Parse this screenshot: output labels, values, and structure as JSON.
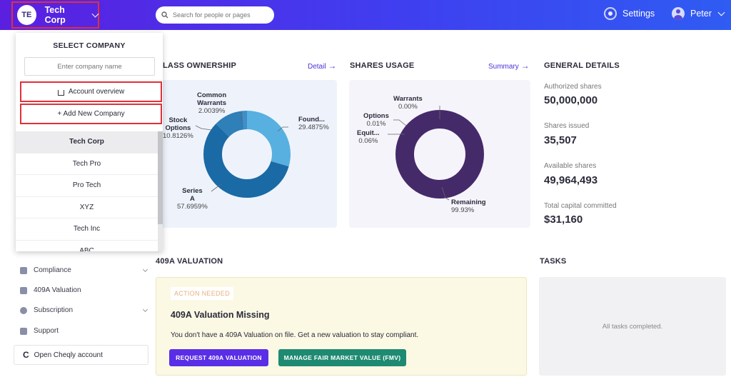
{
  "topbar": {
    "company_initials": "TE",
    "company_name": "Tech Corp",
    "search_placeholder": "Search for people or pages",
    "settings_label": "Settings",
    "user_name": "Peter"
  },
  "ownership": {
    "title": "LASS OWNERSHIP",
    "link": "Detail",
    "labels": [
      {
        "name_lines": [
          "Common",
          "Warrants"
        ],
        "value": "2.0039%"
      },
      {
        "name_lines": [
          "Found..."
        ],
        "value": "29.4875%"
      },
      {
        "name_lines": [
          "Stock",
          "Options"
        ],
        "value": "10.8126%"
      },
      {
        "name_lines": [
          "Series",
          "A"
        ],
        "value": "57.6959%"
      }
    ],
    "slices": [
      {
        "name": "Founders",
        "value": 29.4875,
        "color": "#58b0e0"
      },
      {
        "name": "Series A",
        "value": 57.6959,
        "color": "#1a6aa6"
      },
      {
        "name": "Stock Options",
        "value": 10.8126,
        "color": "#2f7fb8"
      },
      {
        "name": "Common Warrants",
        "value": 2.0039,
        "color": "#3e8fc8"
      }
    ]
  },
  "shares_usage": {
    "title": "SHARES USAGE",
    "link": "Summary",
    "labels": [
      {
        "name_lines": [
          "Warrants"
        ],
        "value": "0.00%"
      },
      {
        "name_lines": [
          "Options"
        ],
        "value": "0.01%"
      },
      {
        "name_lines": [
          "Equit..."
        ],
        "value": "0.06%"
      },
      {
        "name_lines": [
          "Remaining"
        ],
        "value": "99.93%"
      }
    ],
    "ring_color": "#452a6a"
  },
  "general": {
    "title": "GENERAL DETAILS",
    "items": [
      {
        "label": "Authorized shares",
        "value": "50,000,000"
      },
      {
        "label": "Shares issued",
        "value": "35,507"
      },
      {
        "label": "Available shares",
        "value": "49,964,493"
      },
      {
        "label": "Total capital committed",
        "value": "$31,160"
      }
    ]
  },
  "sidebar": {
    "items": [
      {
        "label": "Compliance",
        "icon": "shield-icon",
        "has_chevron": true
      },
      {
        "label": "409A Valuation",
        "icon": "chart-icon",
        "has_chevron": false
      },
      {
        "label": "Subscription",
        "icon": "gear-icon",
        "has_chevron": true
      },
      {
        "label": "Support",
        "icon": "support-icon",
        "has_chevron": false
      }
    ],
    "open_cheqly": "Open Cheqly account"
  },
  "dropdown": {
    "title": "SELECT COMPANY",
    "input_placeholder": "Enter company name",
    "account_overview": "Account overview",
    "add_company": "+ Add New Company",
    "companies": [
      "Tech Corp",
      "Tech Pro",
      "Pro Tech",
      "XYZ",
      "Tech Inc",
      "ABC"
    ],
    "active_index": 0
  },
  "valuation": {
    "section_title": "409A VALUATION",
    "badge": "ACTION NEEDED",
    "title": "409A Valuation Missing",
    "text": "You don't have a 409A Valuation on file. Get a new valuation to stay compliant.",
    "btn_request": "REQUEST 409A VALUATION",
    "btn_manage": "MANAGE FAIR MARKET VALUE (FMV)"
  },
  "tasks": {
    "title": "TASKS",
    "empty_text": "All tasks completed."
  }
}
